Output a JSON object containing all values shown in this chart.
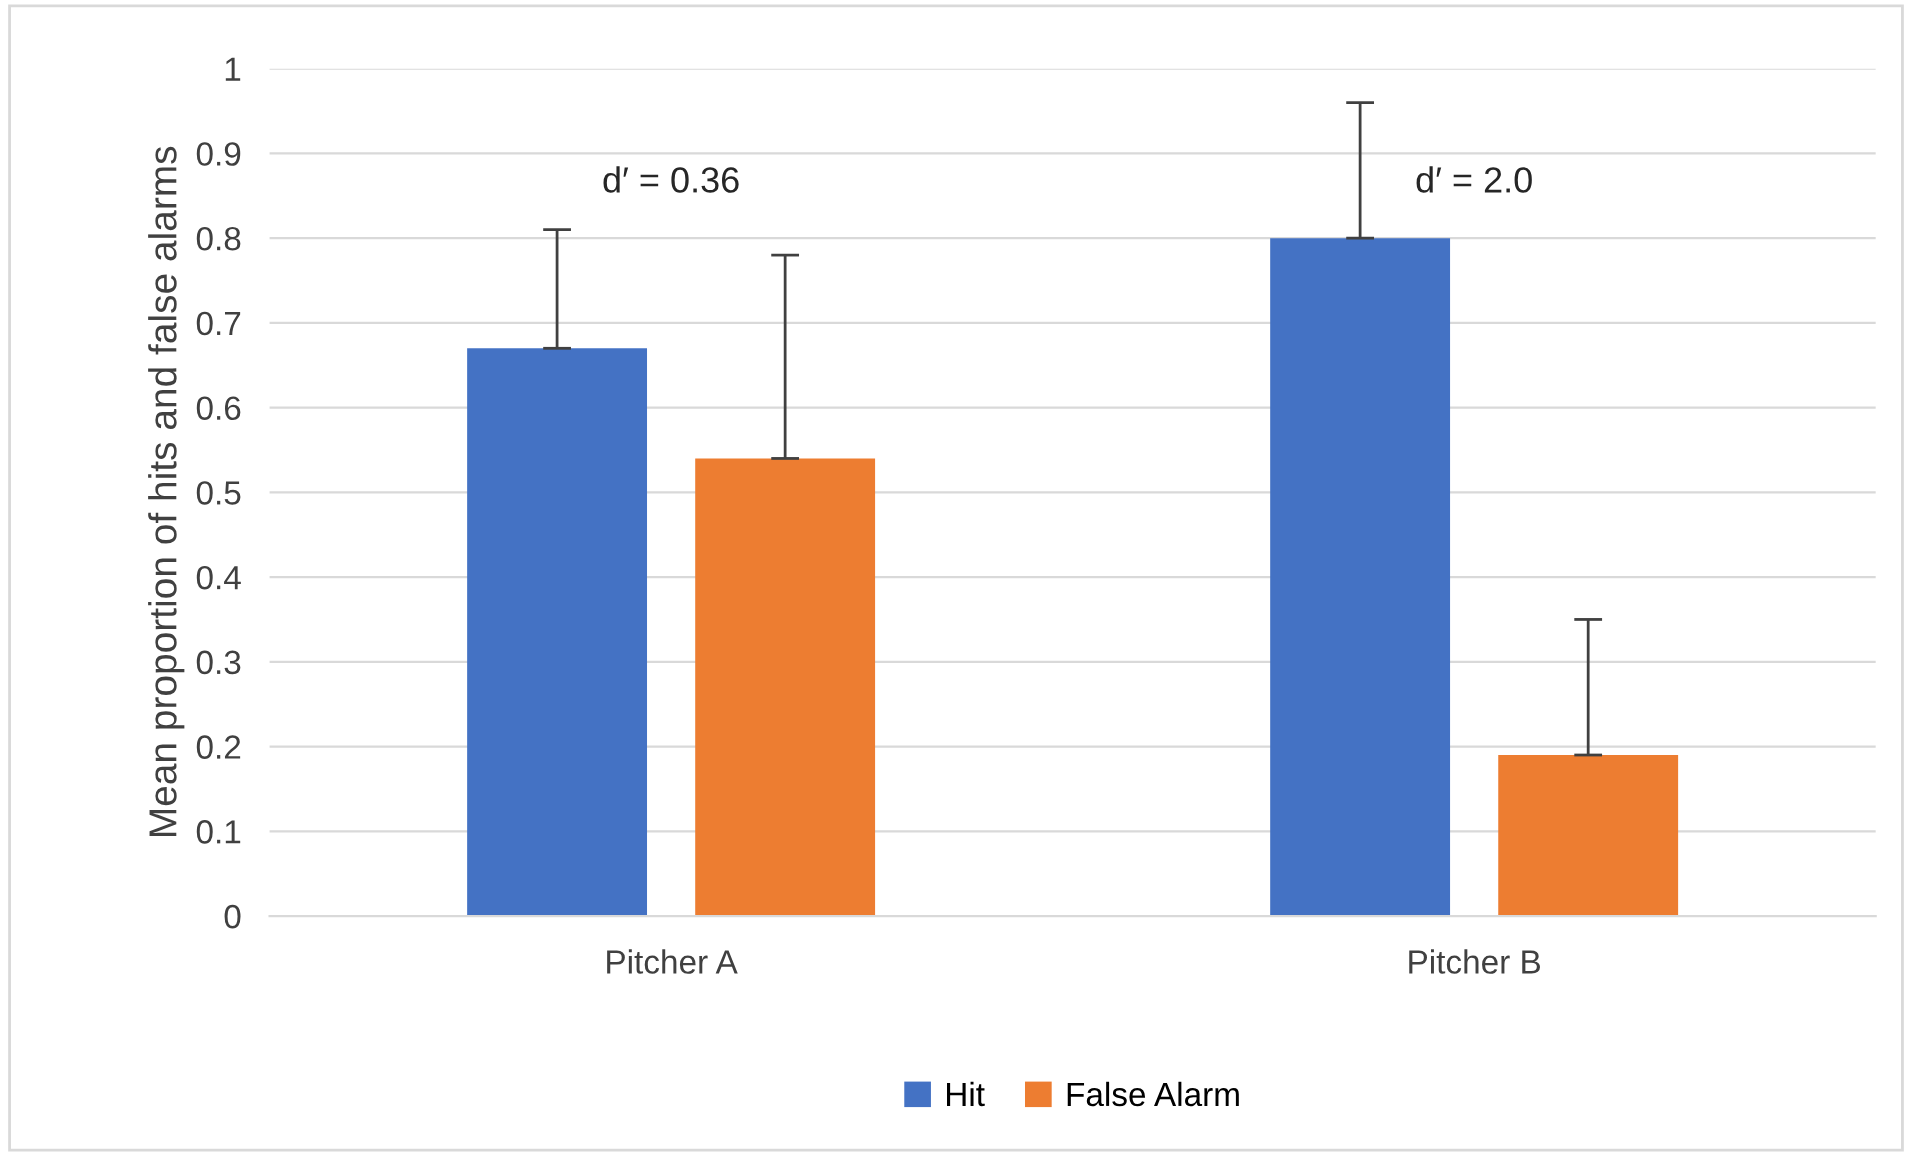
{
  "chart_data": {
    "type": "bar",
    "ylabel": "Mean proportion of hits and false alarms",
    "categories": [
      "Pitcher A",
      "Pitcher B"
    ],
    "series": [
      {
        "name": "Hit",
        "color": "#4472c4",
        "values": [
          0.67,
          0.8
        ],
        "errors": [
          [
            0.67,
            0.81
          ],
          [
            0.8,
            0.96
          ]
        ]
      },
      {
        "name": "False Alarm",
        "color": "#ed7d31",
        "values": [
          0.54,
          0.19
        ],
        "errors": [
          [
            0.54,
            0.78
          ],
          [
            0.19,
            0.35
          ]
        ]
      }
    ],
    "ylim": [
      0,
      1
    ],
    "yticks": [
      0,
      {
        "value": 0.1,
        "label": "0.1"
      },
      {
        "value": 0.2,
        "label": "0.2"
      },
      {
        "value": 0.3,
        "label": "0.3"
      },
      {
        "value": 0.4,
        "label": "0.4"
      },
      {
        "value": 0.5,
        "label": "0.5"
      },
      {
        "value": 0.6,
        "label": "0.6"
      },
      {
        "value": 0.7,
        "label": "0.7"
      },
      {
        "value": 0.8,
        "label": "0.8"
      },
      {
        "value": 0.9,
        "label": "0.9"
      },
      1
    ],
    "annotations": [
      "d′ = 0.36",
      "d′ = 2.0"
    ],
    "grid": "y",
    "legend": "bottom"
  }
}
